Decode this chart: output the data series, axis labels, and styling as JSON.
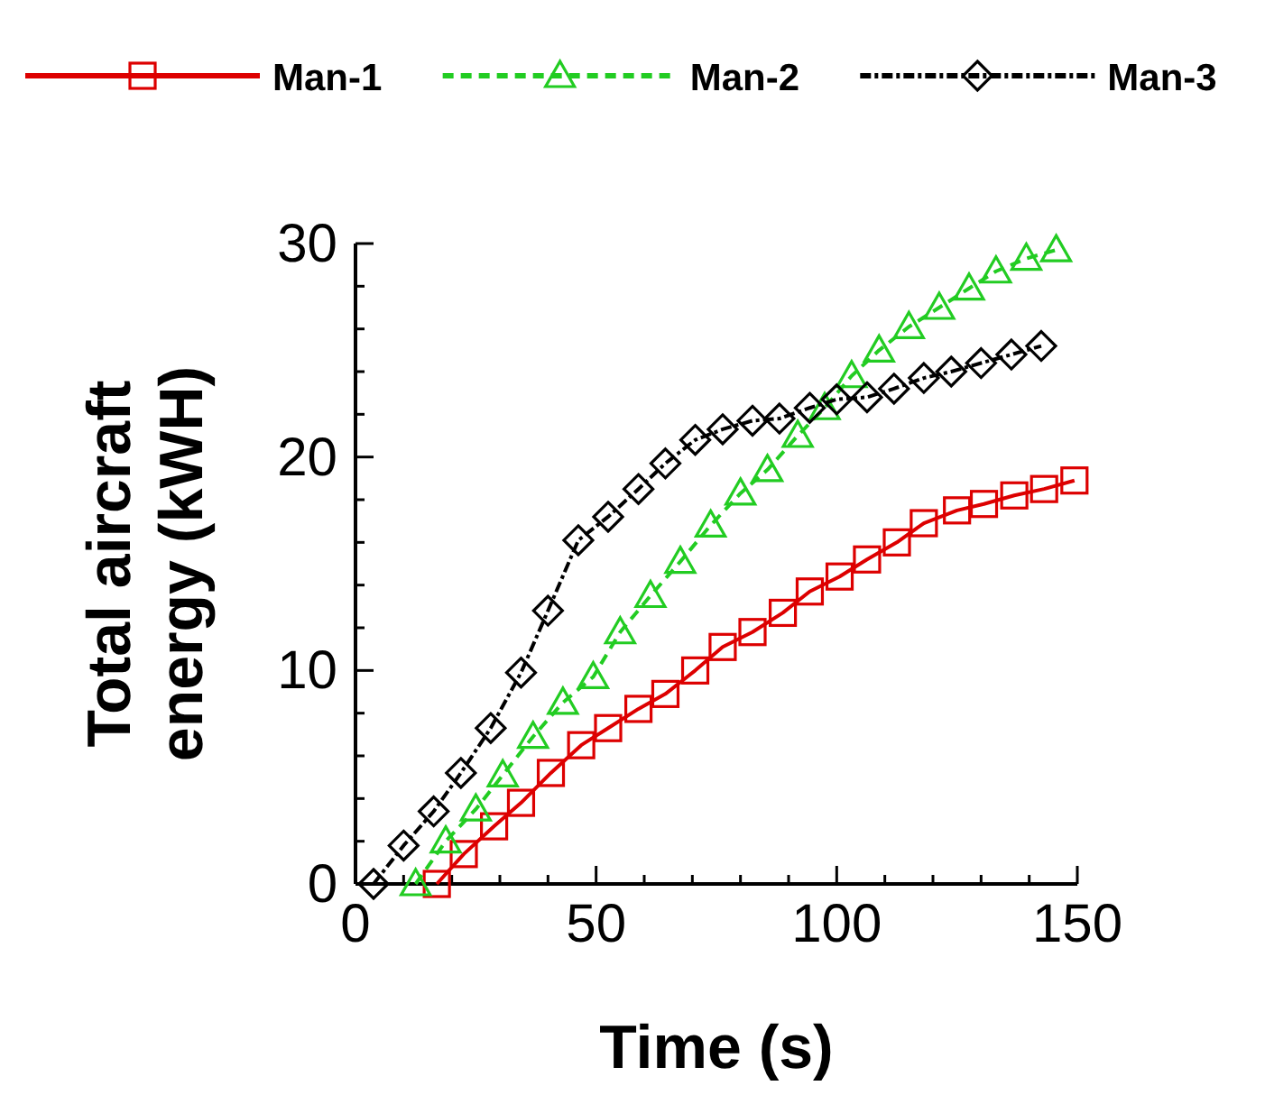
{
  "chart_data": {
    "type": "line",
    "xlabel": "Time (s)",
    "ylabel": "Total aircraft\nenergy (kWH)",
    "xlim": [
      0,
      150
    ],
    "ylim": [
      0,
      30
    ],
    "xticks": [
      0,
      {
        "value": 10,
        "label": null
      },
      {
        "value": 20,
        "label": null
      },
      {
        "value": 30,
        "label": null
      },
      {
        "value": 40,
        "label": null
      },
      50,
      {
        "value": 60,
        "label": null
      },
      {
        "value": 70,
        "label": null
      },
      {
        "value": 80,
        "label": null
      },
      {
        "value": 90,
        "label": null
      },
      100,
      {
        "value": 110,
        "label": null
      },
      {
        "value": 120,
        "label": null
      },
      {
        "value": 130,
        "label": null
      },
      {
        "value": 140,
        "label": null
      },
      150
    ],
    "yticks": [
      0,
      {
        "value": 2,
        "label": null
      },
      {
        "value": 4,
        "label": null
      },
      {
        "value": 6,
        "label": null
      },
      {
        "value": 8,
        "label": null
      },
      10,
      {
        "value": 12,
        "label": null
      },
      {
        "value": 14,
        "label": null
      },
      {
        "value": 16,
        "label": null
      },
      {
        "value": 18,
        "label": null
      },
      20,
      {
        "value": 22,
        "label": null
      },
      {
        "value": 24,
        "label": null
      },
      {
        "value": 26,
        "label": null
      },
      {
        "value": 28,
        "label": null
      },
      30
    ],
    "grid": false,
    "legend": "top",
    "series": [
      {
        "name": "Man-1",
        "color": "#dd0000",
        "marker": "square",
        "line_style": "solid",
        "x": [
          16.9,
          22.5,
          28.8,
          34.4,
          40.6,
          46.9,
          52.5,
          58.8,
          64.4,
          70.6,
          76.3,
          82.5,
          88.8,
          94.4,
          100.6,
          106.3,
          112.5,
          118.1,
          125,
          130.6,
          136.9,
          143.1,
          149.4
        ],
        "values": [
          0,
          1.4,
          2.7,
          3.8,
          5.2,
          6.5,
          7.3,
          8.2,
          8.9,
          10.0,
          11.1,
          11.8,
          12.7,
          13.7,
          14.4,
          15.2,
          16.0,
          16.9,
          17.5,
          17.8,
          18.2,
          18.5,
          18.9
        ]
      },
      {
        "name": "Man-2",
        "color": "#22cc22",
        "marker": "triangle",
        "line_style": "dashed",
        "x": [
          12.5,
          18.75,
          25,
          30.6,
          36.9,
          43.1,
          49.4,
          55,
          61.3,
          67.5,
          73.8,
          80,
          85.6,
          91.9,
          97.5,
          103.1,
          108.8,
          115,
          121.3,
          127.5,
          133.1,
          139.4,
          145.6
        ],
        "values": [
          0,
          2.0,
          3.5,
          5.1,
          6.9,
          8.5,
          9.7,
          11.8,
          13.5,
          15.1,
          16.8,
          18.3,
          19.4,
          21.0,
          22.3,
          23.8,
          25.0,
          26.1,
          27.0,
          27.9,
          28.7,
          29.3,
          29.7
        ]
      },
      {
        "name": "Man-3",
        "color": "#000000",
        "marker": "diamond",
        "line_style": "dashdot",
        "x": [
          3.75,
          10,
          16.25,
          21.9,
          28.1,
          34.4,
          40,
          46.3,
          52.5,
          58.8,
          64.4,
          70.6,
          76.3,
          82.5,
          88.1,
          94.4,
          100,
          106.3,
          111.9,
          118.1,
          123.8,
          130,
          136.3,
          142.5
        ],
        "values": [
          0,
          1.8,
          3.4,
          5.2,
          7.3,
          9.9,
          12.8,
          16.1,
          17.2,
          18.5,
          19.7,
          20.8,
          21.3,
          21.7,
          21.8,
          22.3,
          22.7,
          22.8,
          23.2,
          23.7,
          24.0,
          24.4,
          24.8,
          25.2
        ]
      }
    ]
  }
}
